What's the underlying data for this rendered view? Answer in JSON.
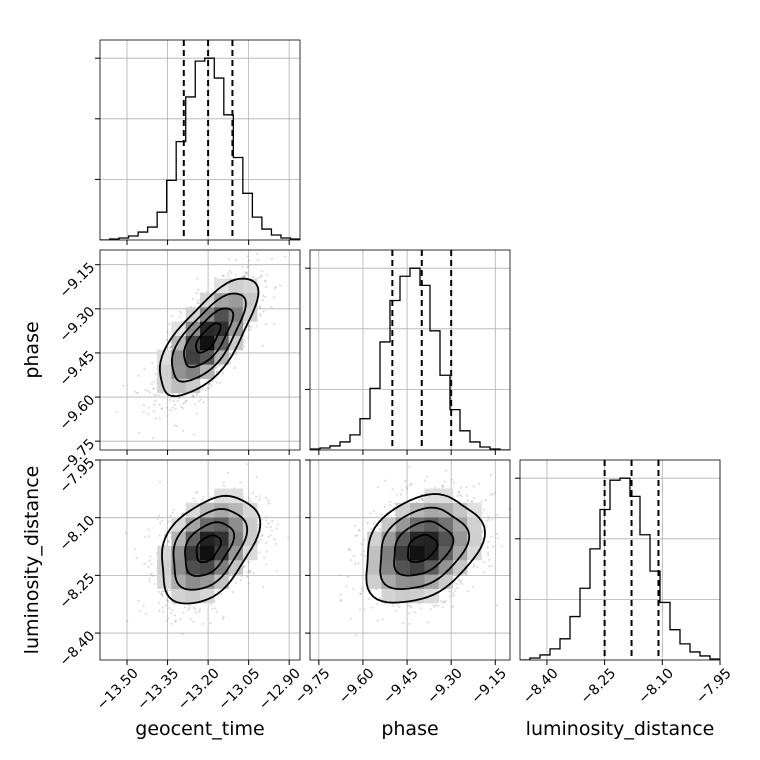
{
  "chart_data": {
    "type": "corner",
    "parameters": [
      {
        "name": "geocent_time",
        "range": [
          -13.6,
          -12.86
        ],
        "ticks": [
          -13.5,
          -13.35,
          -13.2,
          -13.05,
          -12.9
        ],
        "tick_labels": [
          "−13.50",
          "−13.35",
          "−13.20",
          "−13.05",
          "−12.90"
        ],
        "quantiles": [
          -13.29,
          -13.2,
          -13.11
        ],
        "histogram": [
          0,
          1,
          2,
          4,
          8,
          13,
          28,
          60,
          99,
          144,
          180,
          183,
          163,
          126,
          83,
          47,
          23,
          11,
          5,
          2,
          1
        ]
      },
      {
        "name": "phase",
        "range": [
          -9.78,
          -9.1
        ],
        "ticks": [
          -9.75,
          -9.6,
          -9.45,
          -9.3,
          -9.15
        ],
        "tick_labels": [
          "−9.75",
          "−9.60",
          "−9.45",
          "−9.30",
          "−9.15"
        ],
        "quantiles": [
          -9.5,
          -9.4,
          -9.3
        ],
        "histogram": [
          1,
          2,
          4,
          8,
          15,
          31,
          61,
          107,
          148,
          172,
          180,
          163,
          118,
          74,
          40,
          19,
          8,
          3,
          1,
          0
        ]
      },
      {
        "name": "luminosity_distance",
        "range": [
          -8.47,
          -7.95
        ],
        "ticks": [
          -8.4,
          -8.25,
          -8.1,
          -7.95
        ],
        "tick_labels": [
          "−8.40",
          "−8.25",
          "−8.10",
          "−7.95"
        ],
        "quantiles": [
          -8.25,
          -8.18,
          -8.11
        ],
        "histogram": [
          0,
          2,
          5,
          11,
          21,
          43,
          71,
          110,
          149,
          178,
          180,
          162,
          124,
          88,
          57,
          30,
          16,
          8,
          4,
          1
        ]
      }
    ],
    "pairs": [
      {
        "x": "geocent_time",
        "y": "phase",
        "correlation": 0.7
      },
      {
        "x": "geocent_time",
        "y": "luminosity_distance",
        "correlation": 0.4
      },
      {
        "x": "phase",
        "y": "luminosity_distance",
        "correlation": 0.3
      }
    ],
    "contour_levels_sigma": [
      0.5,
      1.0,
      1.5,
      2.0
    ],
    "grid": true,
    "colors": {
      "line": "#000000",
      "grid": "#b0b0b0",
      "points": "#9e9e9e"
    }
  }
}
